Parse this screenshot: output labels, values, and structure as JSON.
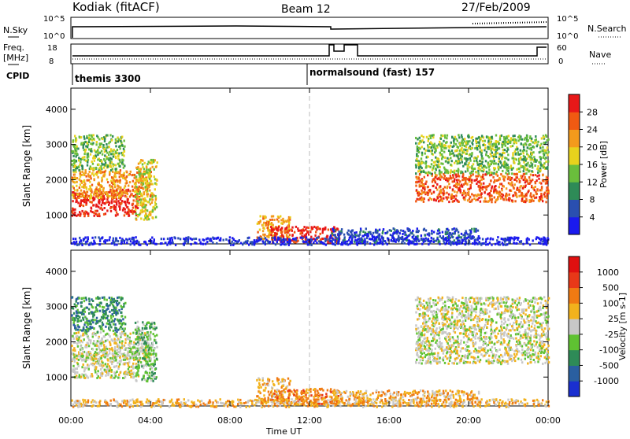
{
  "header": {
    "station": "Kodiak (fitACF)",
    "beam": "Beam 12",
    "date": "27/Feb/2009"
  },
  "strip_labels": {
    "nsky": "N.Sky",
    "nsearch": "N.Search",
    "freq": "Freq.",
    "mhz": "[MHz]",
    "nave": "Nave",
    "cpid": "CPID",
    "nsky_ticks": [
      "10^5",
      "10^0"
    ],
    "nsearch_ticks": [
      "10^5",
      "10^0"
    ],
    "freq_ticks": [
      "18",
      "8"
    ],
    "nave_ticks": [
      "60",
      "0"
    ]
  },
  "cpid_modes": [
    {
      "label": "themis 3300",
      "start": 0
    },
    {
      "label": "normalsound (fast) 157",
      "start": 12.0
    }
  ],
  "x_axis": {
    "label": "Time UT",
    "ticks": [
      "00:00",
      "04:00",
      "08:00",
      "12:00",
      "16:00",
      "20:00",
      "00:00"
    ]
  },
  "chart_data": [
    {
      "type": "heatmap",
      "title": "",
      "xlabel": "Time UT",
      "ylabel": "Slant Range [km]",
      "xlim": [
        0,
        24
      ],
      "ylim": [
        180,
        4600
      ],
      "yticks": [
        1000,
        2000,
        3000,
        4000
      ],
      "colorbar": {
        "label": "Power [dB]",
        "ticks": [
          "4",
          "8",
          "12",
          "16",
          "20",
          "24",
          "28"
        ],
        "range": [
          0,
          32
        ],
        "colors": [
          "#1a1aee",
          "#2a4fb0",
          "#2e8b57",
          "#6abe3c",
          "#e8d21d",
          "#f39a1c",
          "#f05a12",
          "#e81818"
        ]
      },
      "regions": [
        {
          "t": [
            0.0,
            3.4
          ],
          "r": [
            1000,
            1750
          ],
          "level": 7
        },
        {
          "t": [
            0.0,
            4.0
          ],
          "r": [
            1500,
            2300
          ],
          "level": 5
        },
        {
          "t": [
            0.0,
            2.7
          ],
          "r": [
            2300,
            3300
          ],
          "level": 3
        },
        {
          "t": [
            3.2,
            4.3
          ],
          "r": [
            900,
            2600
          ],
          "level": 4
        },
        {
          "t": [
            9.3,
            11.0
          ],
          "r": [
            300,
            1000
          ],
          "level": 5
        },
        {
          "t": [
            10.0,
            13.5
          ],
          "r": [
            250,
            700
          ],
          "level": 7
        },
        {
          "t": [
            13.0,
            20.5
          ],
          "r": [
            250,
            650
          ],
          "level": 1
        },
        {
          "t": [
            17.3,
            24.0
          ],
          "r": [
            1400,
            2200
          ],
          "level": 6
        },
        {
          "t": [
            17.3,
            24.0
          ],
          "r": [
            2200,
            3300
          ],
          "level": 3
        },
        {
          "t": [
            0.0,
            24.0
          ],
          "r": [
            180,
            400
          ],
          "level": 0
        }
      ]
    },
    {
      "type": "heatmap",
      "title": "",
      "xlabel": "Time UT",
      "ylabel": "Slant Range [km]",
      "xlim": [
        0,
        24
      ],
      "ylim": [
        180,
        4600
      ],
      "yticks": [
        1000,
        2000,
        3000,
        4000
      ],
      "colorbar": {
        "label": "Velocity [m s-1]",
        "ticks": [
          "1000",
          "500",
          "100",
          "25",
          "-25",
          "-100",
          "-500",
          "-1000"
        ],
        "colors": [
          "#1a2fd0",
          "#2a5fa0",
          "#2e8b57",
          "#5fc232",
          "#c8c8c8",
          "#f2b21c",
          "#f07a12",
          "#e83818",
          "#e01010"
        ]
      },
      "regions": [
        {
          "t": [
            0.0,
            3.4
          ],
          "r": [
            1000,
            1750
          ],
          "level": 4
        },
        {
          "t": [
            0.0,
            4.0
          ],
          "r": [
            1500,
            2300
          ],
          "level": 4
        },
        {
          "t": [
            0.0,
            2.7
          ],
          "r": [
            2300,
            3300
          ],
          "level": 2
        },
        {
          "t": [
            3.2,
            4.3
          ],
          "r": [
            900,
            2600
          ],
          "level": 3
        },
        {
          "t": [
            9.3,
            11.0
          ],
          "r": [
            300,
            1000
          ],
          "level": 5
        },
        {
          "t": [
            10.0,
            13.5
          ],
          "r": [
            250,
            700
          ],
          "level": 6
        },
        {
          "t": [
            13.0,
            20.5
          ],
          "r": [
            250,
            650
          ],
          "level": 5
        },
        {
          "t": [
            17.3,
            24.0
          ],
          "r": [
            1400,
            2200
          ],
          "level": 4
        },
        {
          "t": [
            17.3,
            24.0
          ],
          "r": [
            2200,
            3300
          ],
          "level": 4
        },
        {
          "t": [
            0.0,
            24.0
          ],
          "r": [
            180,
            400
          ],
          "level": 5
        }
      ]
    }
  ]
}
